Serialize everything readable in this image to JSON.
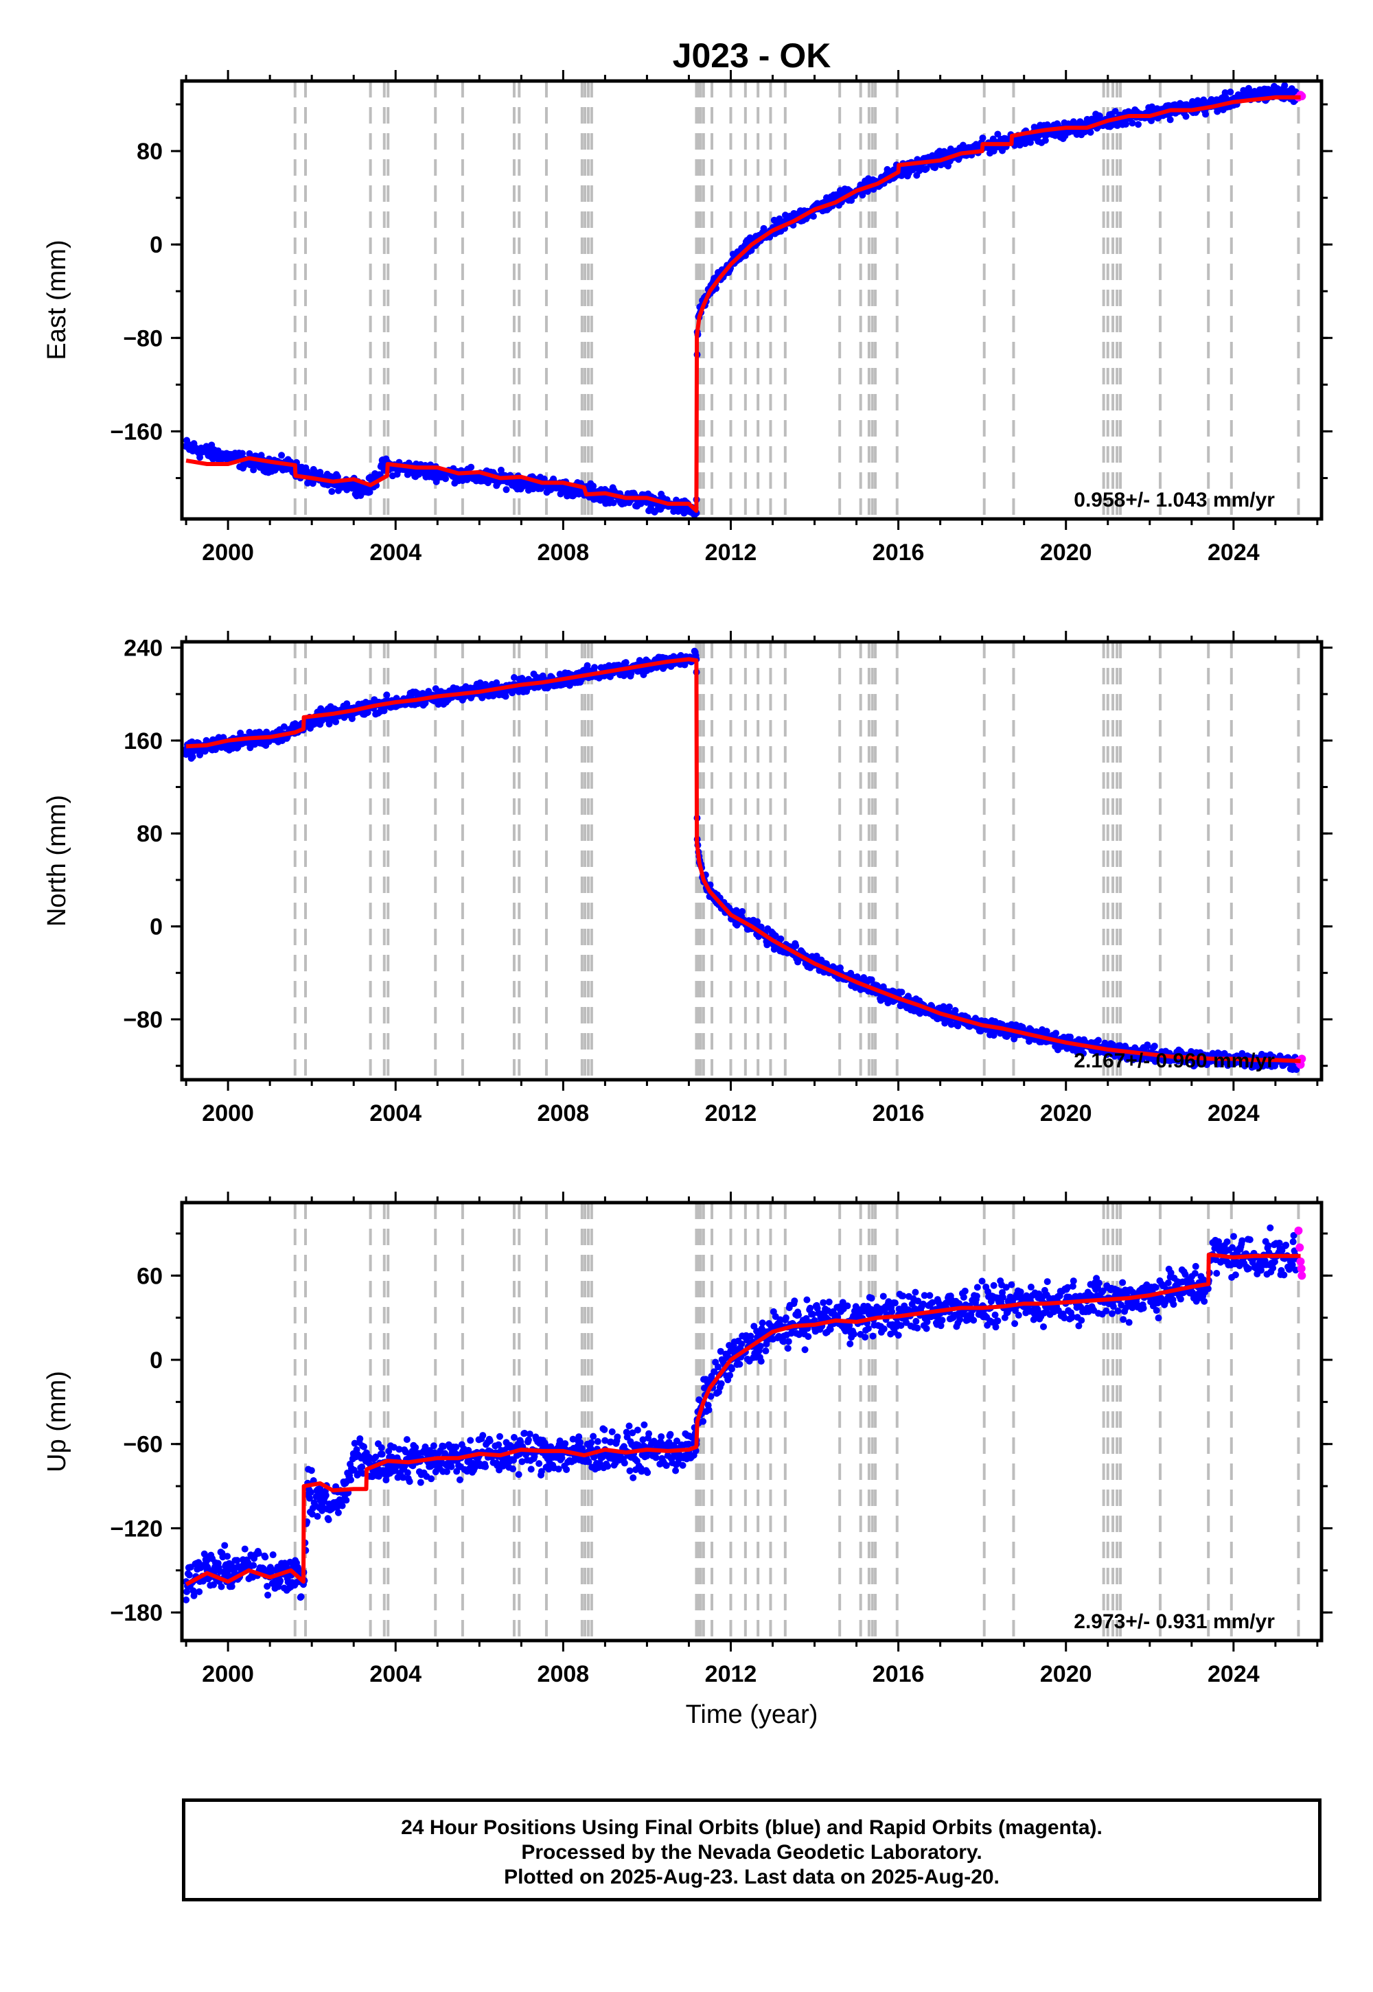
{
  "chart_data": [
    {
      "type": "scatter",
      "title": "J023 - OK",
      "ylabel": "East (mm)",
      "xlabel": "",
      "xlim": [
        1998.9,
        2026.1
      ],
      "ylim": [
        -235,
        140
      ],
      "xticks": [
        2000,
        2004,
        2008,
        2012,
        2016,
        2020,
        2024
      ],
      "yticks": [
        -160,
        -80,
        0,
        80
      ],
      "grid": false,
      "rate_text": "0.958+/- 1.043 mm/yr",
      "series": [
        {
          "name": "Final Orbits",
          "color": "#0000ff",
          "x": [
            1999.0,
            1999.5,
            2000.0,
            2000.5,
            2001.0,
            2001.5,
            2001.8,
            2002.0,
            2002.5,
            2003.0,
            2003.3,
            2003.5,
            2003.7,
            2004.0,
            2004.5,
            2005.0,
            2005.5,
            2006.0,
            2006.5,
            2007.0,
            2007.5,
            2008.0,
            2008.5,
            2009.0,
            2009.5,
            2010.0,
            2010.5,
            2011.0,
            2011.18,
            2011.2,
            2011.25,
            2011.35,
            2011.5,
            2011.75,
            2012.0,
            2012.5,
            2013.0,
            2013.5,
            2014.0,
            2014.5,
            2015.0,
            2015.5,
            2016.0,
            2016.5,
            2017.0,
            2017.5,
            2018.0,
            2018.5,
            2019.0,
            2019.5,
            2020.0,
            2020.5,
            2021.0,
            2021.5,
            2022.0,
            2022.5,
            2023.0,
            2023.5,
            2024.0,
            2024.5,
            2025.0,
            2025.5
          ],
          "y": [
            -173,
            -178,
            -182,
            -186,
            -188,
            -190,
            -196,
            -200,
            -204,
            -205,
            -210,
            -202,
            -190,
            -191,
            -193,
            -195,
            -197,
            -199,
            -201,
            -203,
            -205,
            -208,
            -211,
            -214,
            -217,
            -220,
            -223,
            -226,
            -230,
            -75,
            -60,
            -50,
            -40,
            -28,
            -17,
            0,
            12,
            22,
            30,
            38,
            46,
            54,
            62,
            68,
            73,
            78,
            83,
            88,
            92,
            96,
            98,
            102,
            106,
            110,
            112,
            115,
            117,
            119,
            124,
            128,
            130,
            128
          ]
        },
        {
          "name": "Rapid Orbits",
          "color": "#ff00ff",
          "x": [
            2025.55,
            2025.6,
            2025.63
          ],
          "y": [
            126,
            128,
            127
          ]
        }
      ],
      "model": {
        "name": "model",
        "color": "#ff0000",
        "x": [
          1999.0,
          1999.5,
          2000.0,
          2000.5,
          2001.0,
          2001.6,
          2001.61,
          2002.0,
          2002.5,
          2003.0,
          2003.4,
          2003.8,
          2003.81,
          2004.5,
          2005.0,
          2005.5,
          2006.0,
          2006.5,
          2007.0,
          2007.5,
          2008.0,
          2008.5,
          2008.55,
          2009.0,
          2009.5,
          2010.0,
          2010.5,
          2011.0,
          2011.18,
          2011.19,
          2011.25,
          2011.35,
          2011.5,
          2011.75,
          2012.0,
          2012.5,
          2013.0,
          2013.5,
          2014.0,
          2014.5,
          2015.0,
          2015.5,
          2016.0,
          2016.01,
          2016.5,
          2017.0,
          2017.5,
          2018.0,
          2018.01,
          2018.7,
          2018.71,
          2019.0,
          2019.5,
          2020.0,
          2020.5,
          2021.0,
          2021.5,
          2022.0,
          2022.5,
          2023.0,
          2023.5,
          2024.0,
          2024.5,
          2025.0,
          2025.6
        ],
        "y": [
          -185,
          -188,
          -188,
          -183,
          -186,
          -189,
          -198,
          -200,
          -203,
          -201,
          -206,
          -198,
          -188,
          -191,
          -191,
          -196,
          -195,
          -200,
          -199,
          -204,
          -204,
          -208,
          -214,
          -213,
          -217,
          -217,
          -222,
          -222,
          -228,
          -78,
          -62,
          -52,
          -40,
          -28,
          -17,
          0,
          12,
          20,
          30,
          36,
          46,
          52,
          62,
          68,
          70,
          72,
          78,
          80,
          86,
          86,
          93,
          95,
          98,
          100,
          100,
          106,
          110,
          110,
          115,
          115,
          118,
          122,
          124,
          126,
          126
        ]
      }
    },
    {
      "type": "scatter",
      "title": "",
      "ylabel": "North (mm)",
      "xlabel": "",
      "xlim": [
        1998.9,
        2026.1
      ],
      "ylim": [
        -132,
        245
      ],
      "xticks": [
        2000,
        2004,
        2008,
        2012,
        2016,
        2020,
        2024
      ],
      "yticks": [
        -80,
        0,
        80,
        160,
        240
      ],
      "grid": false,
      "rate_text": "2.167+/- 0.960 mm/yr",
      "series": [
        {
          "name": "Final Orbits",
          "color": "#0000ff",
          "x": [
            1999.0,
            1999.5,
            2000.0,
            2000.5,
            2001.0,
            2001.5,
            2001.8,
            2002.0,
            2002.5,
            2003.0,
            2003.5,
            2004.0,
            2004.5,
            2005.0,
            2005.5,
            2006.0,
            2006.5,
            2007.0,
            2007.5,
            2008.0,
            2008.5,
            2009.0,
            2009.5,
            2010.0,
            2010.5,
            2011.0,
            2011.18,
            2011.2,
            2011.25,
            2011.35,
            2011.5,
            2011.75,
            2012.0,
            2012.5,
            2013.0,
            2013.5,
            2014.0,
            2014.5,
            2015.0,
            2015.5,
            2016.0,
            2016.5,
            2017.0,
            2017.5,
            2018.0,
            2018.5,
            2019.0,
            2019.5,
            2020.0,
            2020.5,
            2021.0,
            2021.5,
            2022.0,
            2022.5,
            2023.0,
            2023.5,
            2024.0,
            2024.5,
            2025.0,
            2025.5
          ],
          "y": [
            152,
            155,
            158,
            160,
            163,
            168,
            172,
            178,
            182,
            185,
            190,
            193,
            195,
            198,
            200,
            202,
            205,
            208,
            210,
            213,
            216,
            219,
            222,
            225,
            228,
            230,
            230,
            75,
            55,
            40,
            30,
            20,
            10,
            0,
            -12,
            -22,
            -32,
            -40,
            -48,
            -55,
            -62,
            -68,
            -75,
            -80,
            -85,
            -88,
            -92,
            -96,
            -100,
            -103,
            -106,
            -108,
            -110,
            -112,
            -113,
            -114,
            -114,
            -115,
            -116,
            -117
          ]
        },
        {
          "name": "Rapid Orbits",
          "color": "#ff00ff",
          "x": [
            2025.55,
            2025.6,
            2025.63
          ],
          "y": [
            -116,
            -119,
            -114
          ]
        }
      ],
      "model": {
        "name": "model",
        "color": "#ff0000",
        "x": [
          1999.0,
          1999.5,
          2000.0,
          2000.5,
          2001.0,
          2001.6,
          2001.8,
          2001.81,
          2002.5,
          2003.0,
          2003.5,
          2004.0,
          2004.5,
          2005.0,
          2005.5,
          2006.0,
          2006.5,
          2007.0,
          2007.5,
          2008.0,
          2008.5,
          2009.0,
          2009.5,
          2010.0,
          2010.5,
          2011.0,
          2011.18,
          2011.19,
          2011.25,
          2011.35,
          2011.5,
          2011.75,
          2012.0,
          2012.5,
          2013.0,
          2013.5,
          2014.0,
          2014.5,
          2015.0,
          2015.5,
          2016.0,
          2016.5,
          2017.0,
          2017.5,
          2018.0,
          2018.5,
          2019.0,
          2019.5,
          2020.0,
          2020.5,
          2021.0,
          2021.5,
          2022.0,
          2022.5,
          2023.0,
          2023.5,
          2024.0,
          2024.5,
          2025.0,
          2025.6
        ],
        "y": [
          155,
          156,
          160,
          162,
          163,
          167,
          170,
          180,
          183,
          186,
          190,
          193,
          195,
          198,
          200,
          202,
          205,
          208,
          210,
          213,
          216,
          219,
          222,
          225,
          228,
          230,
          229,
          72,
          55,
          40,
          30,
          20,
          10,
          0,
          -12,
          -22,
          -32,
          -40,
          -48,
          -55,
          -62,
          -68,
          -75,
          -80,
          -85,
          -88,
          -92,
          -96,
          -100,
          -103,
          -106,
          -108,
          -110,
          -112,
          -113,
          -114,
          -114,
          -115,
          -115,
          -116
        ]
      }
    },
    {
      "type": "scatter",
      "title": "",
      "ylabel": "Up (mm)",
      "xlabel": "Time (year)",
      "xlim": [
        1998.9,
        2026.1
      ],
      "ylim": [
        -200,
        112
      ],
      "xticks": [
        2000,
        2004,
        2008,
        2012,
        2016,
        2020,
        2024
      ],
      "yticks": [
        -180,
        -120,
        -60,
        0,
        60
      ],
      "grid": false,
      "rate_text": "2.973+/- 0.931 mm/yr",
      "series": [
        {
          "name": "Final Orbits",
          "color": "#0000ff",
          "x": [
            1999.0,
            1999.5,
            2000.0,
            2000.5,
            2001.0,
            2001.5,
            2001.8,
            2001.9,
            2002.2,
            2002.5,
            2002.8,
            2003.0,
            2003.5,
            2004.0,
            2004.5,
            2005.0,
            2005.5,
            2006.0,
            2006.5,
            2007.0,
            2007.5,
            2008.0,
            2008.5,
            2009.0,
            2009.5,
            2010.0,
            2010.5,
            2011.0,
            2011.18,
            2011.2,
            2011.35,
            2011.5,
            2011.75,
            2012.0,
            2012.5,
            2013.0,
            2013.5,
            2014.0,
            2014.5,
            2015.0,
            2015.5,
            2016.0,
            2016.5,
            2017.0,
            2017.5,
            2018.0,
            2018.5,
            2019.0,
            2019.5,
            2020.0,
            2020.5,
            2021.0,
            2021.5,
            2022.0,
            2022.5,
            2023.0,
            2023.4,
            2023.5,
            2024.0,
            2024.5,
            2025.0,
            2025.5
          ],
          "y": [
            -158,
            -150,
            -150,
            -148,
            -152,
            -150,
            -160,
            -96,
            -100,
            -104,
            -96,
            -68,
            -75,
            -72,
            -72,
            -70,
            -70,
            -68,
            -68,
            -65,
            -66,
            -66,
            -68,
            -64,
            -66,
            -65,
            -65,
            -65,
            -60,
            -44,
            -30,
            -20,
            -10,
            0,
            10,
            20,
            25,
            28,
            30,
            28,
            32,
            32,
            34,
            36,
            38,
            38,
            38,
            40,
            40,
            42,
            42,
            44,
            44,
            46,
            50,
            52,
            55,
            75,
            74,
            73,
            74,
            72
          ]
        },
        {
          "name": "Rapid Orbits",
          "color": "#ff00ff",
          "x": [
            2025.55,
            2025.58,
            2025.6,
            2025.62,
            2025.63
          ],
          "y": [
            92,
            80,
            70,
            65,
            60
          ]
        }
      ],
      "model": {
        "name": "model",
        "color": "#ff0000",
        "x": [
          1999.0,
          1999.5,
          2000.0,
          2000.5,
          2001.0,
          2001.5,
          2001.8,
          2001.81,
          2002.2,
          2002.5,
          2003.0,
          2003.3,
          2003.31,
          2003.8,
          2004.3,
          2005.0,
          2005.5,
          2006.0,
          2006.5,
          2007.0,
          2007.5,
          2008.0,
          2008.5,
          2009.0,
          2009.5,
          2010.0,
          2010.5,
          2011.0,
          2011.18,
          2011.2,
          2011.35,
          2011.5,
          2011.75,
          2012.0,
          2012.5,
          2013.0,
          2013.5,
          2014.0,
          2014.5,
          2015.0,
          2015.5,
          2016.0,
          2016.5,
          2017.0,
          2017.5,
          2018.0,
          2018.5,
          2019.0,
          2019.5,
          2020.0,
          2020.5,
          2021.0,
          2021.5,
          2022.0,
          2022.5,
          2023.0,
          2023.4,
          2023.41,
          2024.0,
          2024.5,
          2025.0,
          2025.6
        ],
        "y": [
          -160,
          -152,
          -158,
          -150,
          -155,
          -150,
          -158,
          -90,
          -88,
          -93,
          -92,
          -92,
          -78,
          -72,
          -73,
          -70,
          -70,
          -67,
          -68,
          -64,
          -65,
          -65,
          -68,
          -64,
          -66,
          -64,
          -65,
          -64,
          -62,
          -44,
          -30,
          -20,
          -10,
          0,
          10,
          20,
          24,
          25,
          28,
          27,
          30,
          31,
          33,
          35,
          37,
          37,
          38,
          40,
          40,
          41,
          42,
          43,
          44,
          46,
          49,
          52,
          54,
          75,
          73,
          74,
          74,
          74
        ]
      }
    }
  ],
  "footer": {
    "line1": "24 Hour Positions Using Final Orbits (blue) and Rapid Orbits (magenta).",
    "line2": "Processed by the Nevada Geodetic Laboratory.",
    "line3": "Plotted on 2025-Aug-23. Last data on 2025-Aug-20."
  },
  "event_years": [
    2001.6,
    2001.85,
    2003.4,
    2003.73,
    2003.82,
    2004.95,
    2005.6,
    2006.83,
    2006.95,
    2007.6,
    2008.45,
    2008.52,
    2008.6,
    2008.68,
    2011.18,
    2011.23,
    2011.28,
    2011.35,
    2011.55,
    2012.0,
    2012.35,
    2012.65,
    2012.95,
    2013.3,
    2014.6,
    2015.1,
    2015.3,
    2015.38,
    2015.45,
    2015.97,
    2018.05,
    2018.75,
    2020.9,
    2021.0,
    2021.12,
    2021.22,
    2021.3,
    2022.25,
    2023.4,
    2023.95,
    2025.55
  ]
}
